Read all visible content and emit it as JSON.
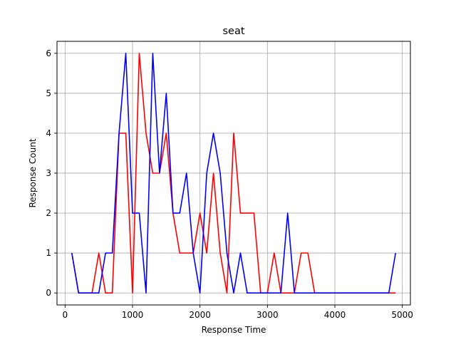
{
  "chart_data": {
    "type": "line",
    "title": "seat",
    "xlabel": "Response Time",
    "ylabel": "Response Count",
    "xlim": [
      -120,
      5120
    ],
    "ylim": [
      -0.3,
      6.3
    ],
    "xticks": [
      0,
      1000,
      2000,
      3000,
      4000,
      5000
    ],
    "yticks": [
      0,
      1,
      2,
      3,
      4,
      5,
      6
    ],
    "grid": true,
    "legend": "none",
    "x": [
      100,
      200,
      300,
      400,
      500,
      600,
      700,
      800,
      900,
      1000,
      1100,
      1200,
      1300,
      1400,
      1500,
      1600,
      1700,
      1800,
      1900,
      2000,
      2100,
      2200,
      2300,
      2400,
      2500,
      2600,
      2700,
      2800,
      2900,
      3000,
      3100,
      3200,
      3300,
      3400,
      3500,
      3600,
      3700,
      3800,
      3900,
      4000,
      4100,
      4200,
      4300,
      4400,
      4500,
      4600,
      4700,
      4800,
      4900
    ],
    "series": [
      {
        "color": "#ff0000",
        "values": [
          1,
          0,
          0,
          0,
          1,
          0,
          0,
          4,
          4,
          0,
          6,
          4,
          3,
          3,
          4,
          2,
          1,
          1,
          1,
          2,
          1,
          3,
          1,
          0,
          4,
          2,
          2,
          2,
          0,
          0,
          1,
          0,
          0,
          0,
          1,
          1,
          0,
          0,
          0,
          0,
          0,
          0,
          0,
          0,
          0,
          0,
          0,
          0,
          0
        ]
      },
      {
        "color": "#0000ff",
        "values": [
          1,
          0,
          0,
          0,
          0,
          1,
          1,
          4,
          6,
          2,
          2,
          0,
          6,
          3,
          5,
          2,
          2,
          3,
          1,
          0,
          3,
          4,
          3,
          1,
          0,
          1,
          0,
          0,
          0,
          0,
          0,
          0,
          2,
          0,
          0,
          0,
          0,
          0,
          0,
          0,
          0,
          0,
          0,
          0,
          0,
          0,
          0,
          0,
          1
        ]
      }
    ]
  }
}
